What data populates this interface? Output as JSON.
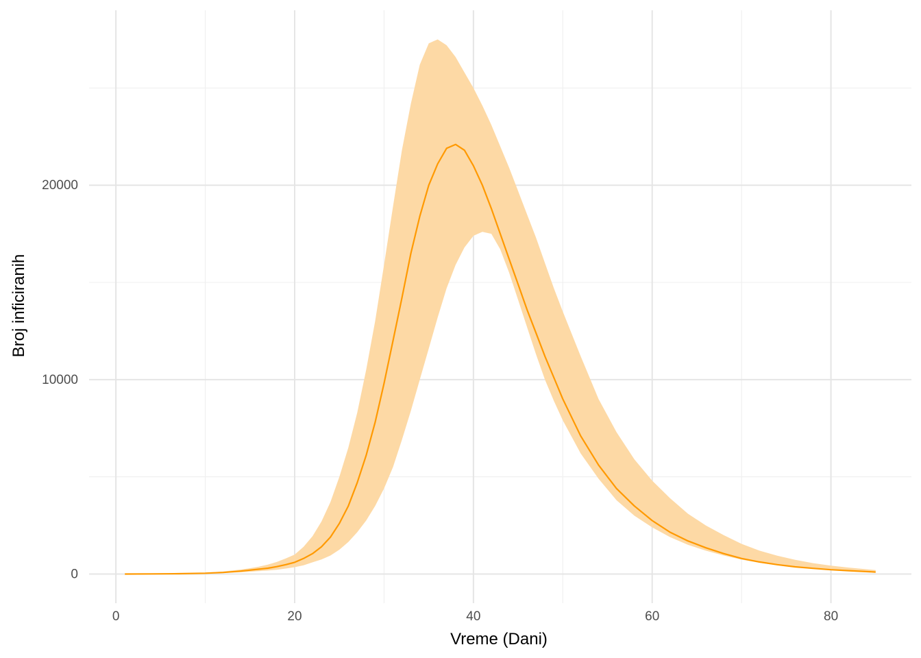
{
  "chart_data": {
    "type": "line",
    "title": "",
    "xlabel": "Vreme (Dani)",
    "ylabel": "Broj inficiranih",
    "xlim": [
      -3,
      89
    ],
    "ylim": [
      -1500,
      29000
    ],
    "x_ticks": [
      0,
      20,
      40,
      60,
      80
    ],
    "x_tick_labels": [
      "0",
      "20",
      "40",
      "60",
      "80"
    ],
    "x_minor_ticks": [
      10,
      30,
      50,
      70
    ],
    "y_ticks": [
      0,
      10000,
      20000
    ],
    "y_tick_labels": [
      "0",
      "10000",
      "20000"
    ],
    "y_minor_ticks": [
      5000,
      15000,
      25000
    ],
    "grid": true,
    "legend": "none",
    "colors": {
      "line": "#FF9900",
      "band": "#FDD9A5",
      "grid_major": "#E5E5E5",
      "grid_minor": "#F0F0F0"
    },
    "series": [
      {
        "type": "line",
        "x": [
          1,
          4,
          7,
          10,
          12,
          14,
          15,
          16,
          17,
          18,
          19,
          20,
          21,
          22,
          23,
          24,
          25,
          26,
          27,
          28,
          29,
          30,
          31,
          32,
          33,
          34,
          35,
          36,
          37,
          38,
          39,
          40,
          41,
          42,
          43,
          44,
          45,
          46,
          47,
          48,
          49,
          50,
          52,
          54,
          56,
          58,
          60,
          62,
          64,
          66,
          68,
          70,
          72,
          74,
          76,
          78,
          80,
          82,
          85
        ],
        "values": [
          0,
          5,
          15,
          40,
          80,
          150,
          200,
          250,
          300,
          380,
          480,
          600,
          800,
          1050,
          1400,
          1900,
          2600,
          3500,
          4700,
          6100,
          7800,
          9800,
          12000,
          14200,
          16500,
          18400,
          20000,
          21100,
          21900,
          22100,
          21800,
          21000,
          20000,
          18800,
          17500,
          16200,
          14900,
          13600,
          12400,
          11200,
          10100,
          9000,
          7100,
          5600,
          4400,
          3500,
          2750,
          2150,
          1700,
          1350,
          1050,
          800,
          620,
          480,
          370,
          290,
          220,
          170,
          100
        ]
      },
      {
        "type": "band",
        "x": [
          1,
          4,
          7,
          10,
          12,
          14,
          15,
          16,
          17,
          18,
          19,
          20,
          21,
          22,
          23,
          24,
          25,
          26,
          27,
          28,
          29,
          30,
          31,
          32,
          33,
          34,
          35,
          36,
          37,
          38,
          39,
          40,
          41,
          42,
          43,
          44,
          45,
          46,
          47,
          48,
          49,
          50,
          52,
          54,
          56,
          58,
          60,
          62,
          64,
          66,
          68,
          70,
          72,
          74,
          76,
          78,
          80,
          82,
          85
        ],
        "lower": [
          0,
          3,
          10,
          25,
          50,
          90,
          120,
          150,
          180,
          220,
          280,
          350,
          450,
          600,
          750,
          950,
          1250,
          1650,
          2150,
          2750,
          3500,
          4400,
          5500,
          6900,
          8400,
          10000,
          11600,
          13200,
          14700,
          15900,
          16800,
          17400,
          17600,
          17500,
          16700,
          15500,
          14100,
          12700,
          11300,
          10000,
          8900,
          7900,
          6200,
          4900,
          3800,
          3000,
          2400,
          1900,
          1500,
          1200,
          950,
          740,
          580,
          450,
          350,
          270,
          210,
          160,
          90
        ],
        "upper": [
          0,
          8,
          25,
          70,
          130,
          230,
          300,
          380,
          480,
          620,
          800,
          1000,
          1400,
          1950,
          2700,
          3700,
          5000,
          6500,
          8300,
          10500,
          13000,
          15900,
          18900,
          21800,
          24200,
          26200,
          27300,
          27500,
          27200,
          26600,
          25800,
          25000,
          24100,
          23100,
          22000,
          20900,
          19700,
          18500,
          17300,
          16000,
          14700,
          13500,
          11200,
          9000,
          7300,
          5900,
          4800,
          3900,
          3100,
          2500,
          2000,
          1550,
          1200,
          940,
          730,
          560,
          430,
          330,
          200
        ]
      }
    ]
  }
}
